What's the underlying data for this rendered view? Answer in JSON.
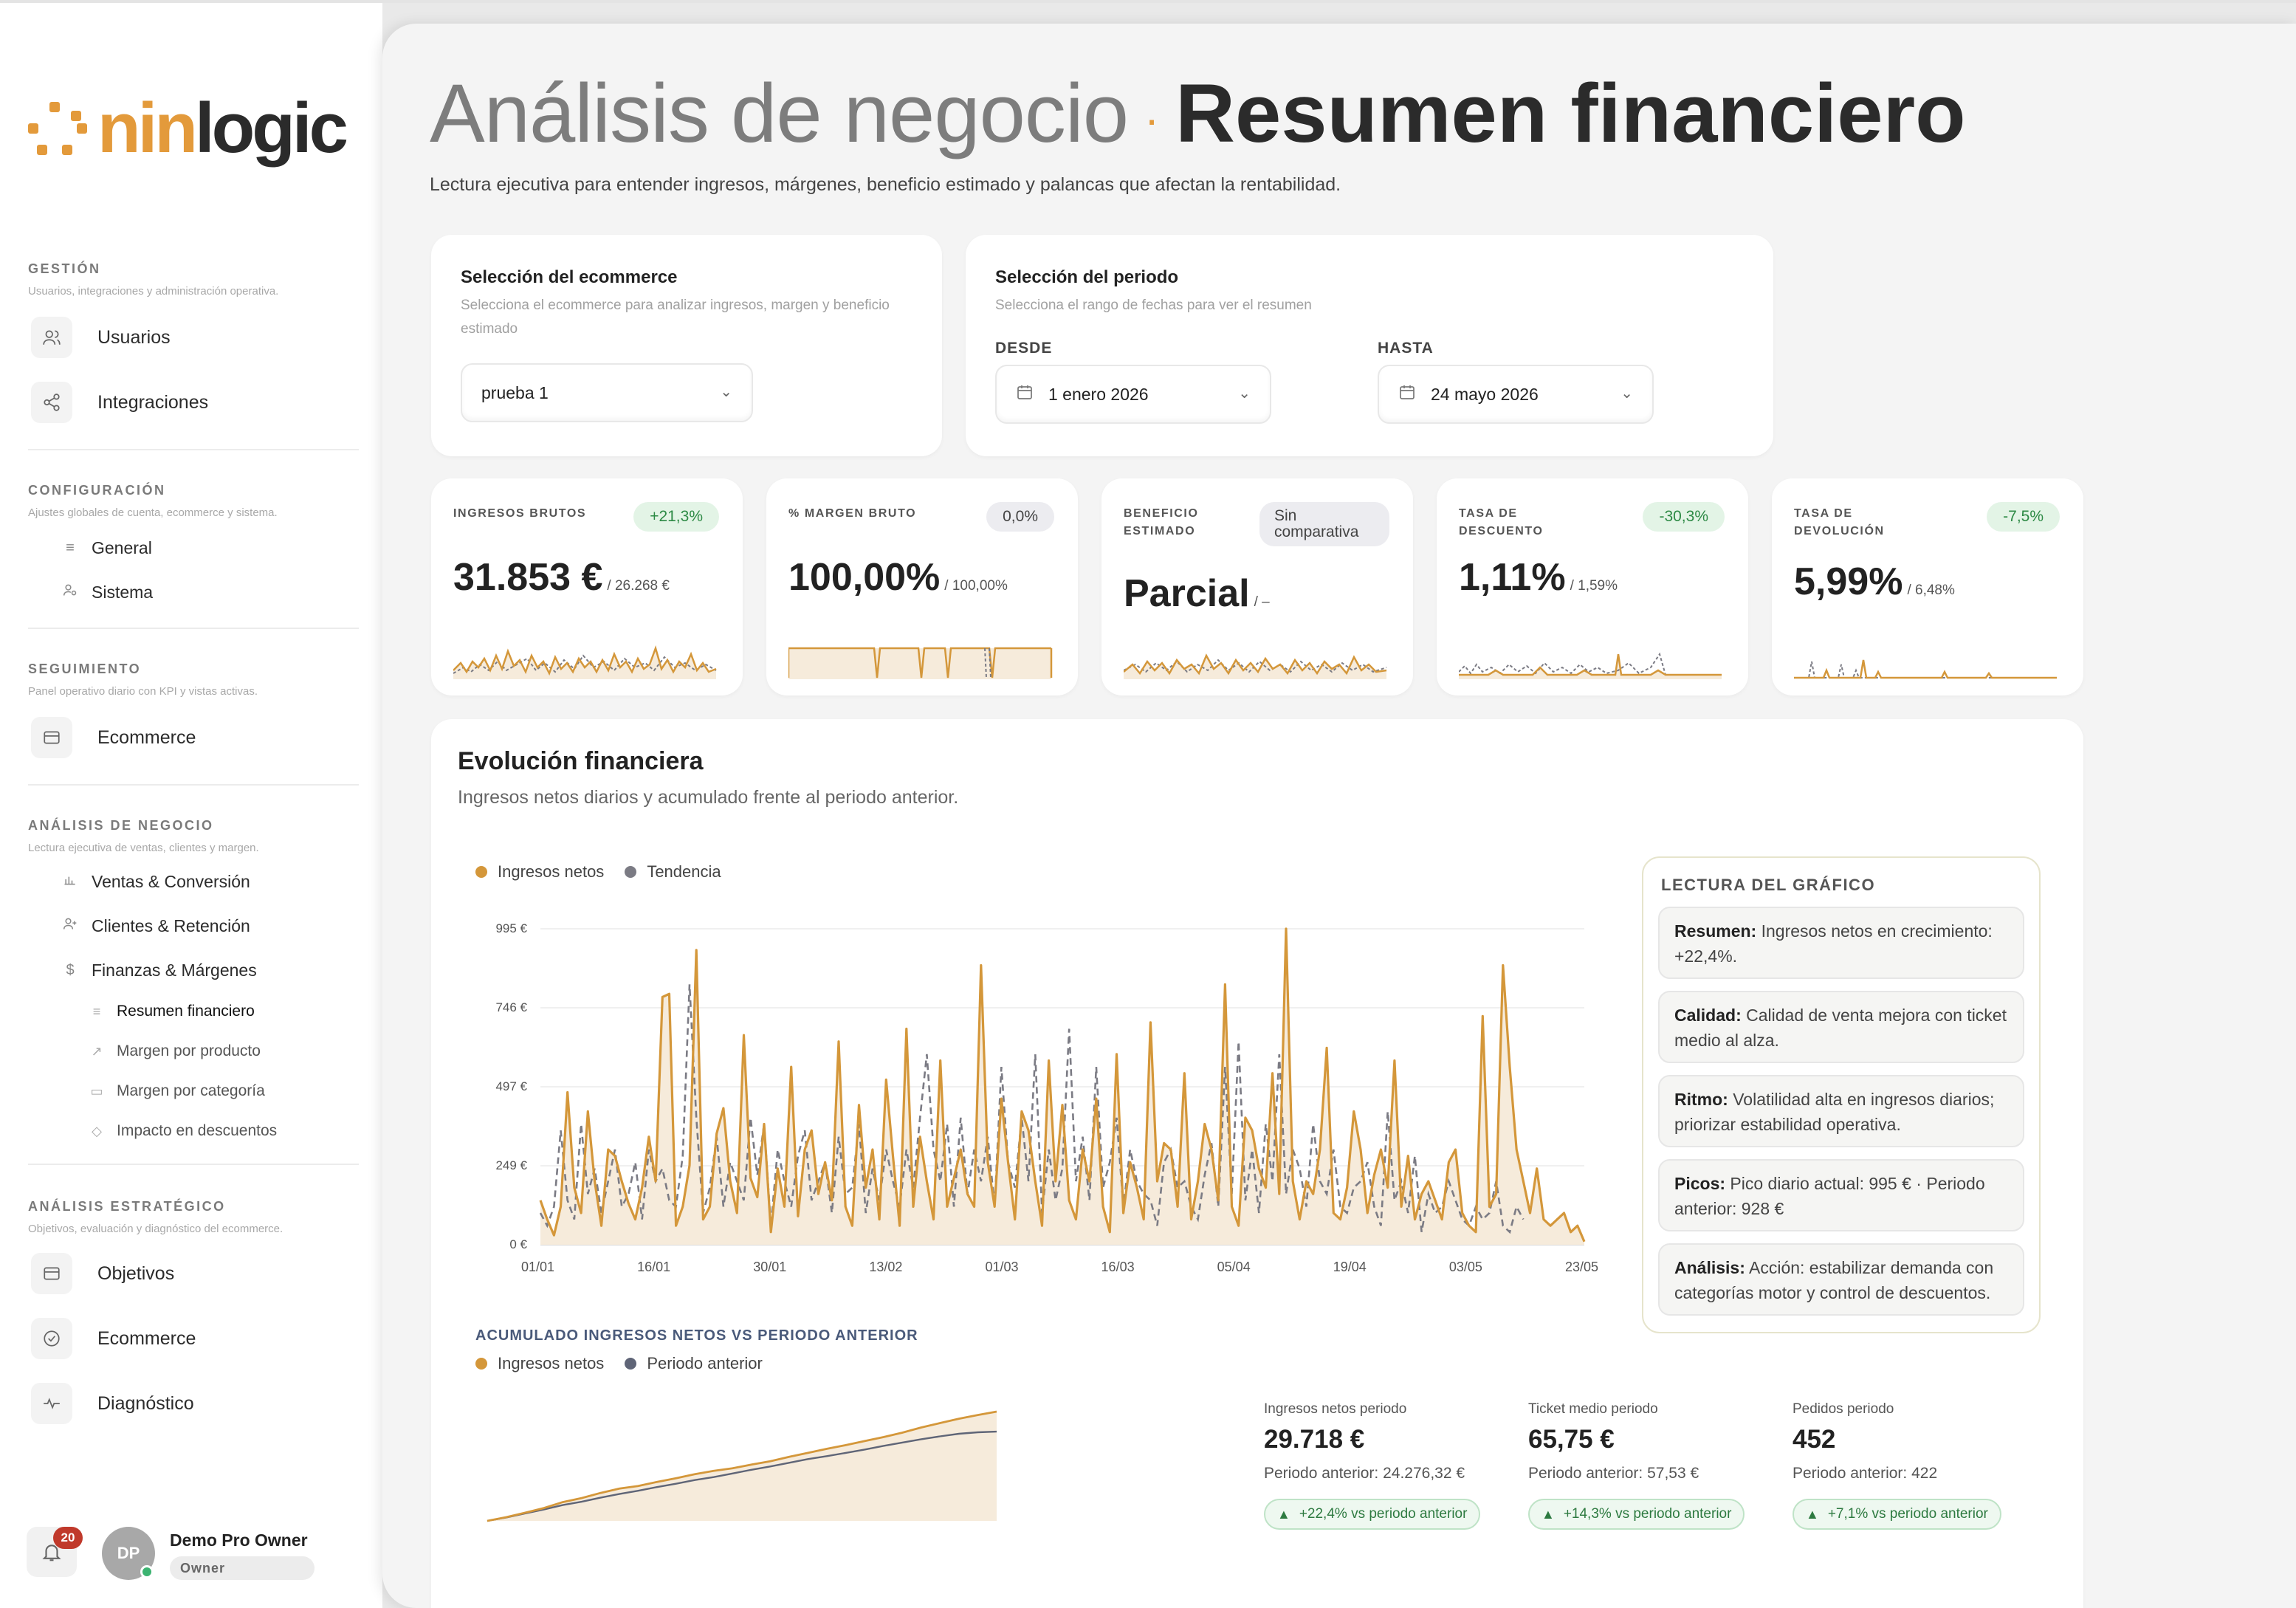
{
  "brand": {
    "logo_part1": "nin",
    "logo_part2": "logic"
  },
  "sidebar": {
    "sections": [
      {
        "title": "GESTIÓN",
        "desc": "Usuarios, integraciones y administración operativa."
      },
      {
        "title": "CONFIGURACIÓN",
        "desc": "Ajustes globales de cuenta, ecommerce y sistema."
      },
      {
        "title": "SEGUIMIENTO",
        "desc": "Panel operativo diario con KPI y vistas activas."
      },
      {
        "title": "ANÁLISIS DE NEGOCIO",
        "desc": "Lectura ejecutiva de ventas, clientes y margen."
      },
      {
        "title": "ANÁLISIS ESTRATÉGICO",
        "desc": "Objetivos, evaluación y diagnóstico del ecommerce."
      }
    ],
    "items": {
      "usuarios": "Usuarios",
      "integraciones": "Integraciones",
      "general": "General",
      "sistema": "Sistema",
      "ecommerce_seg": "Ecommerce",
      "ventas": "Ventas & Conversión",
      "clientes": "Clientes & Retención",
      "finanzas": "Finanzas & Márgenes",
      "resumen": "Resumen financiero",
      "margen_producto": "Margen por producto",
      "margen_categoria": "Margen por categoría",
      "impacto": "Impacto en descuentos",
      "objetivos": "Objetivos",
      "ecommerce_est": "Ecommerce",
      "diagnostico": "Diagnóstico"
    },
    "notifications": "20",
    "user": {
      "initials": "DP",
      "name": "Demo Pro Owner",
      "role": "Owner"
    }
  },
  "header": {
    "title_light": "Análisis de negocio",
    "separator": "·",
    "title_bold": "Resumen financiero",
    "subtitle": "Lectura ejecutiva para entender ingresos, márgenes, beneficio estimado y palancas que afectan la rentabilidad."
  },
  "filters": {
    "ecommerce": {
      "title": "Selección del ecommerce",
      "desc": "Selecciona el ecommerce para analizar ingresos, margen y beneficio estimado",
      "value": "prueba 1"
    },
    "period": {
      "title": "Selección del periodo",
      "desc": "Selecciona el rango de fechas para ver el resumen",
      "from_label": "DESDE",
      "from_value": "1 enero 2026",
      "to_label": "HASTA",
      "to_value": "24 mayo 2026"
    }
  },
  "kpis": [
    {
      "label": "INGRESOS BRUTOS",
      "badge": "+21,3%",
      "value": "31.853 €",
      "prev": "/ 26.268 €"
    },
    {
      "label": "% MARGEN BRUTO",
      "badge": "0,0%",
      "value": "100,00%",
      "prev": "/ 100,00%"
    },
    {
      "label": "BENEFICIO ESTIMADO",
      "badge": "Sin comparativa",
      "value": "Parcial",
      "prev": "/ –"
    },
    {
      "label": "TASA DE DESCUENTO",
      "badge": "-30,3%",
      "value": "1,11%",
      "prev": "/ 1,59%"
    },
    {
      "label": "TASA DE DEVOLUCIÓN",
      "badge": "-7,5%",
      "value": "5,99%",
      "prev": "/ 6,48%"
    }
  ],
  "colors": {
    "accent": "#D4973A",
    "trend": "#7B7B84",
    "fill": "#F6EBDB",
    "good": "#2D8A45"
  },
  "evolution": {
    "title": "Evolución financiera",
    "subtitle": "Ingresos netos diarios y acumulado frente al periodo anterior.",
    "legend": [
      "Ingresos netos",
      "Tendencia"
    ],
    "acc_title": "ACUMULADO INGRESOS NETOS VS PERIODO ANTERIOR",
    "acc_legend": [
      "Ingresos netos",
      "Periodo anterior"
    ]
  },
  "chart_data": {
    "type": "line",
    "title": "",
    "y_ticks": [
      "995 €",
      "746 €",
      "497 €",
      "249 €",
      "0 €"
    ],
    "x_ticks": [
      "01/01",
      "16/01",
      "30/01",
      "13/02",
      "01/03",
      "16/03",
      "05/04",
      "19/04",
      "03/05",
      "23/05"
    ],
    "ylim": [
      0,
      995
    ],
    "series": [
      {
        "name": "Ingresos netos",
        "values": [
          140,
          80,
          30,
          120,
          480,
          180,
          100,
          420,
          200,
          60,
          300,
          280,
          200,
          130,
          80,
          180,
          340,
          200,
          780,
          790,
          60,
          120,
          250,
          928,
          80,
          120,
          350,
          430,
          200,
          100,
          660,
          210,
          150,
          380,
          40,
          240,
          120,
          560,
          90,
          300,
          360,
          160,
          260,
          140,
          640,
          120,
          60,
          440,
          180,
          300,
          80,
          520,
          280,
          60,
          680,
          120,
          340,
          200,
          80,
          580,
          120,
          210,
          300,
          160,
          120,
          880,
          260,
          120,
          460,
          260,
          80,
          420,
          360,
          200,
          60,
          580,
          200,
          440,
          140,
          80,
          300,
          200,
          460,
          120,
          40,
          600,
          100,
          260,
          180,
          80,
          700,
          200,
          320,
          300,
          120,
          540,
          80,
          200,
          380,
          300,
          140,
          820,
          120,
          60,
          400,
          360,
          240,
          180,
          540,
          160,
          995,
          200,
          80,
          200,
          160,
          300,
          620,
          100,
          80,
          180,
          420,
          300,
          100,
          220,
          300,
          180,
          580,
          120,
          280,
          80,
          160,
          200,
          140,
          80,
          260,
          300,
          100,
          60,
          40,
          720,
          120,
          160,
          880,
          560,
          300,
          200,
          100,
          240,
          80,
          60,
          80,
          100,
          40,
          60,
          10
        ]
      },
      {
        "name": "Tendencia",
        "values": [
          100,
          60,
          120,
          360,
          140,
          80,
          380,
          160,
          240,
          100,
          200,
          300,
          120,
          160,
          260,
          80,
          300,
          200,
          240,
          140,
          120,
          280,
          820,
          400,
          100,
          180,
          340,
          120,
          260,
          200,
          140,
          400,
          220,
          380,
          60,
          300,
          200,
          120,
          280,
          360,
          140,
          200,
          260,
          100,
          340,
          160,
          180,
          380,
          100,
          240,
          140,
          300,
          200,
          120,
          300,
          180,
          400,
          600,
          300,
          200,
          380,
          120,
          400,
          160,
          300,
          200,
          340,
          120,
          560,
          260,
          180,
          400,
          200,
          600,
          100,
          300,
          140,
          240,
          680,
          200,
          340,
          140,
          560,
          180,
          260,
          400,
          120,
          300,
          200,
          160,
          140,
          60,
          260,
          300,
          180,
          200,
          120,
          80,
          220,
          320,
          120,
          560,
          160,
          640,
          140,
          300,
          100,
          380,
          200,
          600,
          160,
          300,
          240,
          120,
          380,
          200,
          160,
          300,
          120,
          100,
          180,
          200,
          260,
          120,
          60,
          420,
          140,
          200,
          100,
          280,
          40,
          160,
          100,
          120,
          200,
          140,
          80,
          60,
          120,
          80,
          100,
          200,
          60,
          40,
          120,
          80
        ]
      }
    ]
  },
  "accumulated_chart": {
    "type": "area",
    "series": [
      {
        "name": "Ingresos netos",
        "values": [
          0,
          1000,
          2200,
          3500,
          5100,
          6200,
          7600,
          8800,
          9500,
          10600,
          11600,
          12700,
          13600,
          14300,
          15300,
          16200,
          17400,
          18500,
          19600,
          20600,
          21700,
          22800,
          24000,
          25400,
          26600,
          27800,
          28800,
          29718
        ]
      },
      {
        "name": "Periodo anterior",
        "values": [
          0,
          900,
          2000,
          3100,
          4300,
          5200,
          6300,
          7300,
          8200,
          9200,
          10100,
          11100,
          11900,
          12900,
          13900,
          14800,
          15800,
          16800,
          17600,
          18500,
          19400,
          20400,
          21300,
          22200,
          23000,
          23700,
          24100,
          24276
        ]
      }
    ]
  },
  "reading": {
    "title": "LECTURA DEL GRÁFICO",
    "items": [
      {
        "key": "Resumen:",
        "text": " Ingresos netos en crecimiento: +22,4%."
      },
      {
        "key": "Calidad:",
        "text": " Calidad de venta mejora con ticket medio al alza."
      },
      {
        "key": "Ritmo:",
        "text": " Volatilidad alta en ingresos diarios; priorizar estabilidad operativa."
      },
      {
        "key": "Picos:",
        "text": " Pico diario actual: 995 € · Periodo anterior: 928 €"
      },
      {
        "key": "Análisis:",
        "text": " Acción: estabilizar demanda con categorías motor y control de descuentos."
      }
    ]
  },
  "stats": [
    {
      "label": "Ingresos netos periodo",
      "value": "29.718 €",
      "prev": "Periodo anterior: 24.276,32 €",
      "badge": "+22,4% vs periodo anterior"
    },
    {
      "label": "Ticket medio periodo",
      "value": "65,75 €",
      "prev": "Periodo anterior: 57,53 €",
      "badge": "+14,3% vs periodo anterior"
    },
    {
      "label": "Pedidos periodo",
      "value": "452",
      "prev": "Periodo anterior: 422",
      "badge": "+7,1% vs periodo anterior"
    }
  ]
}
